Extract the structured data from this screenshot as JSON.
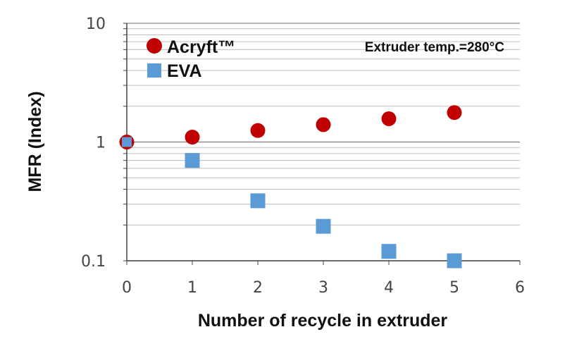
{
  "chart_data": {
    "type": "scatter",
    "xlabel": "Number of recycle in extruder",
    "ylabel": "MFR (Index)",
    "x_ticks": [
      "0",
      "1",
      "2",
      "3",
      "4",
      "5",
      "6"
    ],
    "y_ticks": [
      "0.1",
      "1",
      "10"
    ],
    "xlim": [
      0,
      6
    ],
    "ylim": [
      0.1,
      10
    ],
    "y_scale": "log",
    "grid": "horizontal minor and major",
    "legend_position": "top-left",
    "annotation": "Extruder temp.=280°C",
    "series": [
      {
        "name": "Acryft™",
        "marker": "circle",
        "color": "#c00000",
        "x": [
          0,
          1,
          2,
          3,
          4,
          5
        ],
        "y": [
          1.0,
          1.1,
          1.25,
          1.4,
          1.57,
          1.77
        ]
      },
      {
        "name": "EVA",
        "marker": "square",
        "color": "#5b9bd5",
        "x": [
          0,
          1,
          2,
          3,
          4,
          5
        ],
        "y": [
          1.0,
          0.7,
          0.32,
          0.195,
          0.12,
          0.1
        ]
      }
    ]
  }
}
